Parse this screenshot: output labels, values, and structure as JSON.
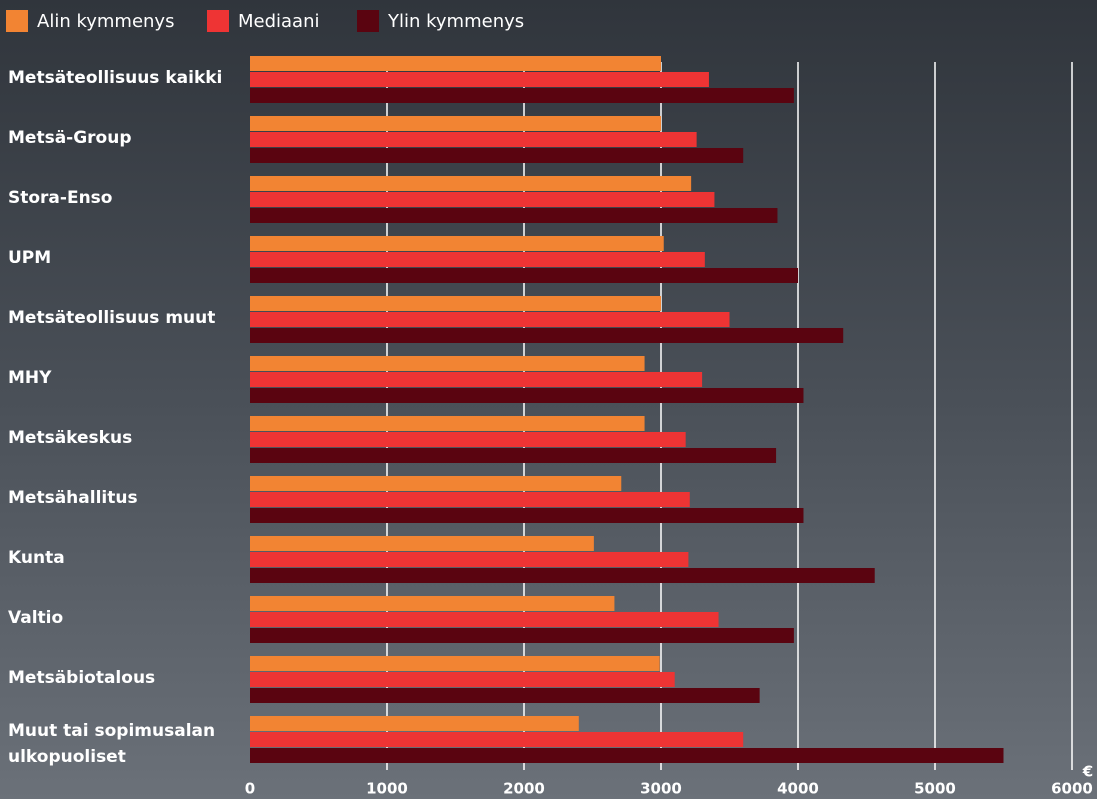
{
  "chart_data": {
    "type": "hbar",
    "categories": [
      "Metsäteollisuus kaikki",
      "Metsä-Group",
      "Stora-Enso",
      "UPM",
      "Metsäteollisuus muut",
      "MHY",
      "Metsäkeskus",
      "Metsähallitus",
      "Kunta",
      "Valtio",
      "Metsäbiotalous",
      "Muut tai sopimusalan ulkopuoliset"
    ],
    "series": [
      {
        "name": "Alin kymmenys",
        "color": "#f28433",
        "values": [
          3000,
          3000,
          3220,
          3020,
          3000,
          2880,
          2880,
          2710,
          2510,
          2660,
          2990,
          2400
        ]
      },
      {
        "name": "Mediaani",
        "color": "#ee3434",
        "values": [
          3350,
          3260,
          3390,
          3320,
          3500,
          3300,
          3180,
          3210,
          3200,
          3420,
          3100,
          3600
        ]
      },
      {
        "name": "Ylin kymmenys",
        "color": "#5a0410",
        "values": [
          3970,
          3600,
          3850,
          4000,
          4330,
          4040,
          3840,
          4040,
          4560,
          3970,
          3720,
          5500
        ]
      }
    ],
    "xlim": [
      0,
      6000
    ],
    "xticks": [
      0,
      1000,
      2000,
      3000,
      4000,
      5000,
      6000
    ],
    "unit": "€",
    "grid": true
  }
}
